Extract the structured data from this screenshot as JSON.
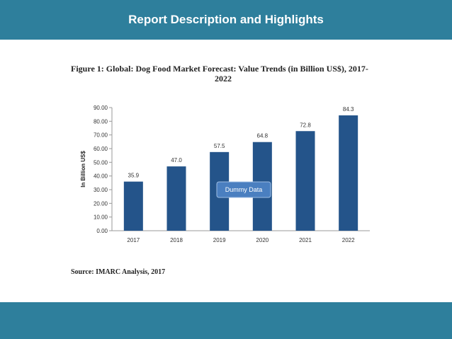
{
  "header": {
    "title": "Report Description and Highlights"
  },
  "figure": {
    "title_line1": "Figure 1: Global: Dog Food Market Forecast: Value Trends (in Billion US$), 2017-",
    "title_line2": "2022",
    "source": "Source: IMARC Analysis, 2017",
    "watermark": "Dummy Data"
  },
  "colors": {
    "banner": "#2e7f9c",
    "bar": "#24548a",
    "badge": "#4a7fc0"
  },
  "chart_data": {
    "type": "bar",
    "categories": [
      "2017",
      "2018",
      "2019",
      "2020",
      "2021",
      "2022"
    ],
    "values": [
      35.9,
      47.0,
      57.5,
      64.8,
      72.8,
      84.3
    ],
    "data_labels": [
      "35.9",
      "47.0",
      "57.5",
      "64.8",
      "72.8",
      "84.3"
    ],
    "ylabel": "In Billion US$",
    "xlabel": "",
    "ylim": [
      0,
      90
    ],
    "yticks": [
      "0.00",
      "10.00",
      "20.00",
      "30.00",
      "40.00",
      "50.00",
      "60.00",
      "70.00",
      "80.00",
      "90.00"
    ],
    "grid": false,
    "legend": "none"
  }
}
